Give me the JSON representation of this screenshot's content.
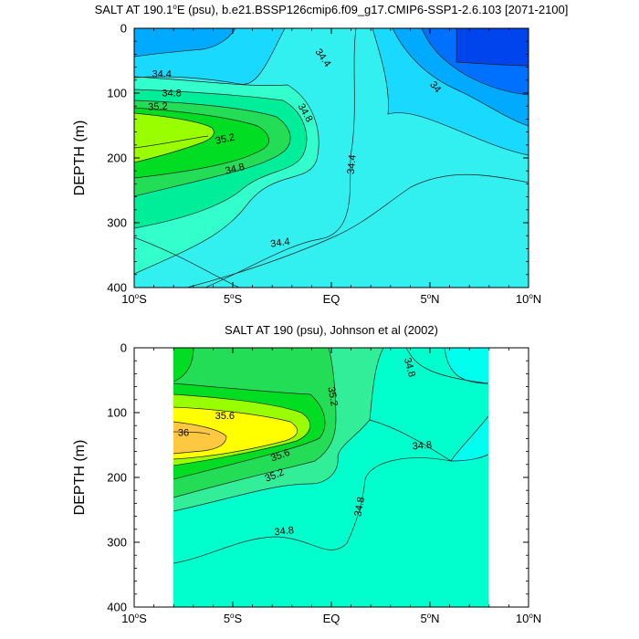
{
  "chart_data": [
    {
      "type": "contour",
      "title": "SALT AT 190.1°E (psu), b.e21.BSSP126cmip6.f09_g17.CMIP6-SSP1-2.6.103 [2071-2100]",
      "title_parts": {
        "pre": "SALT AT 190.1",
        "sup": "o",
        "post": "E (psu), b.e21.BSSP126cmip6.f09_g17.CMIP6-SSP1-2.6.103 [2071-2100]"
      },
      "ylabel": "DEPTH (m)",
      "xlabel": "",
      "xlim": [
        -10,
        10
      ],
      "ylim": [
        0,
        400
      ],
      "y_reversed": true,
      "xticks": [
        {
          "value": -10,
          "num": "10",
          "deg": "o",
          "hem": "S"
        },
        {
          "value": -5,
          "num": "5",
          "deg": "o",
          "hem": "S"
        },
        {
          "value": 0,
          "num": "EQ",
          "deg": "",
          "hem": ""
        },
        {
          "value": 5,
          "num": "5",
          "deg": "o",
          "hem": "N"
        },
        {
          "value": 10,
          "num": "10",
          "deg": "o",
          "hem": "N"
        }
      ],
      "yticks": [
        "0",
        "100",
        "200",
        "300",
        "400"
      ],
      "data_extent": {
        "lon": [
          -10,
          10
        ],
        "depth": [
          5,
          400
        ]
      },
      "contour_labels": [
        {
          "text": "34.4",
          "lon": -8.6,
          "depth": 70,
          "angle": 0
        },
        {
          "text": "34.8",
          "lon": -8.1,
          "depth": 99,
          "angle": 0
        },
        {
          "text": "35.2",
          "lon": -8.8,
          "depth": 120,
          "angle": -3
        },
        {
          "text": "35.2",
          "lon": -5.4,
          "depth": 170,
          "angle": -12
        },
        {
          "text": "34.8",
          "lon": -4.9,
          "depth": 216,
          "angle": -14
        },
        {
          "text": "34.4",
          "lon": -2.6,
          "depth": 330,
          "angle": -8
        },
        {
          "text": "34.4",
          "lon": -0.4,
          "depth": 45,
          "angle": 55
        },
        {
          "text": "34.8",
          "lon": -1.3,
          "depth": 130,
          "angle": 60
        },
        {
          "text": "34.4",
          "lon": 1.0,
          "depth": 210,
          "angle": -85
        },
        {
          "text": "34",
          "lon": 5.3,
          "depth": 90,
          "angle": 50
        }
      ],
      "contour_levels": [
        34.0,
        34.2,
        34.4,
        34.6,
        34.8,
        35.0,
        35.2,
        35.4,
        35.6,
        35.8,
        36.0
      ],
      "fill_colors": [
        "#0033ee",
        "#0070ff",
        "#00aaff",
        "#1ad9ff",
        "#33f0f0",
        "#00ffcc",
        "#33ee99",
        "#22dd55",
        "#00dd22",
        "#99ff00",
        "#ffee00",
        "#ffc840"
      ]
    },
    {
      "type": "contour",
      "title": "SALT AT 190 (psu), Johnson et al (2002)",
      "ylabel": "DEPTH (m)",
      "xlabel": "",
      "xlim": [
        -10,
        10
      ],
      "ylim": [
        0,
        400
      ],
      "y_reversed": true,
      "xticks": [
        {
          "value": -10,
          "num": "10",
          "deg": "o",
          "hem": "S"
        },
        {
          "value": -5,
          "num": "5",
          "deg": "o",
          "hem": "S"
        },
        {
          "value": 0,
          "num": "EQ",
          "deg": "",
          "hem": ""
        },
        {
          "value": 5,
          "num": "5",
          "deg": "o",
          "hem": "N"
        },
        {
          "value": 10,
          "num": "10",
          "deg": "o",
          "hem": "N"
        }
      ],
      "yticks": [
        "0",
        "100",
        "200",
        "300",
        "400"
      ],
      "data_extent": {
        "lon": [
          -8,
          8
        ],
        "depth": [
          5,
          400
        ]
      },
      "contour_labels": [
        {
          "text": "35.6",
          "lon": -5.4,
          "depth": 104,
          "angle": 0
        },
        {
          "text": "36",
          "lon": -7.5,
          "depth": 130,
          "angle": 0
        },
        {
          "text": "35.6",
          "lon": -2.6,
          "depth": 165,
          "angle": -20
        },
        {
          "text": "35.2",
          "lon": -2.9,
          "depth": 196,
          "angle": -22
        },
        {
          "text": "35.2",
          "lon": 0.1,
          "depth": 75,
          "angle": 80
        },
        {
          "text": "34.8",
          "lon": 4.0,
          "depth": 30,
          "angle": 75
        },
        {
          "text": "34.8",
          "lon": 4.6,
          "depth": 150,
          "angle": -5
        },
        {
          "text": "34.8",
          "lon": 1.4,
          "depth": 245,
          "angle": -80
        },
        {
          "text": "34.8",
          "lon": -2.4,
          "depth": 282,
          "angle": -6
        }
      ],
      "contour_levels": [
        34.0,
        34.2,
        34.4,
        34.6,
        34.8,
        35.0,
        35.2,
        35.4,
        35.6,
        35.8,
        36.0
      ],
      "fill_colors": [
        "#0033ee",
        "#0070ff",
        "#00aaff",
        "#1ad9ff",
        "#33f0f0",
        "#00ffcc",
        "#33ee99",
        "#22dd55",
        "#00dd22",
        "#99ff00",
        "#ffee00",
        "#ffc840"
      ]
    }
  ]
}
